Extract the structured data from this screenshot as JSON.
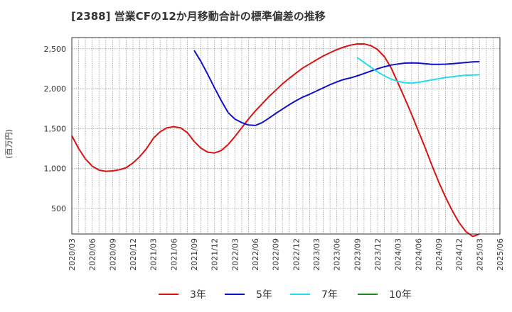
{
  "chart_data": {
    "type": "line",
    "title": "[2388]  営業CFの12か月移動合計の標準偏差の推移",
    "ylabel": "(百万円)",
    "xlabel": "",
    "ylim": [
      180,
      2640
    ],
    "yticks": [
      500,
      1000,
      1500,
      2000,
      2500
    ],
    "ytick_labels": [
      "500",
      "1,000",
      "1,500",
      "2,000",
      "2,500"
    ],
    "xticks": [
      "2020/03",
      "2020/06",
      "2020/09",
      "2020/12",
      "2021/03",
      "2021/06",
      "2021/09",
      "2021/12",
      "2022/03",
      "2022/06",
      "2022/09",
      "2022/12",
      "2023/03",
      "2023/06",
      "2023/09",
      "2023/12",
      "2024/03",
      "2024/06",
      "2024/09",
      "2024/12",
      "2025/03",
      "2025/06"
    ],
    "grid": true,
    "legend_position": "bottom",
    "series": [
      {
        "name": "3年",
        "color": "#dd1111",
        "x": [
          "2020/03",
          "2020/04",
          "2020/05",
          "2020/06",
          "2020/07",
          "2020/08",
          "2020/09",
          "2020/10",
          "2020/11",
          "2020/12",
          "2021/01",
          "2021/02",
          "2021/03",
          "2021/04",
          "2021/05",
          "2021/06",
          "2021/07",
          "2021/08",
          "2021/09",
          "2021/10",
          "2021/11",
          "2021/12",
          "2022/01",
          "2022/02",
          "2022/03",
          "2022/04",
          "2022/05",
          "2022/06",
          "2022/07",
          "2022/08",
          "2022/09",
          "2022/10",
          "2022/11",
          "2022/12",
          "2023/01",
          "2023/02",
          "2023/03",
          "2023/04",
          "2023/05",
          "2023/06",
          "2023/07",
          "2023/08",
          "2023/09",
          "2023/10",
          "2023/11",
          "2023/12",
          "2024/01",
          "2024/02",
          "2024/03",
          "2024/04",
          "2024/05",
          "2024/06",
          "2024/07",
          "2024/08",
          "2024/09",
          "2024/10",
          "2024/11",
          "2024/12",
          "2025/01",
          "2025/02",
          "2025/03"
        ],
        "values": [
          1410,
          1250,
          1120,
          1030,
          980,
          965,
          970,
          985,
          1010,
          1070,
          1150,
          1250,
          1380,
          1460,
          1510,
          1525,
          1510,
          1450,
          1340,
          1255,
          1205,
          1195,
          1225,
          1300,
          1400,
          1510,
          1620,
          1720,
          1810,
          1900,
          1980,
          2060,
          2130,
          2195,
          2260,
          2310,
          2360,
          2410,
          2450,
          2490,
          2520,
          2545,
          2560,
          2560,
          2540,
          2490,
          2400,
          2260,
          2070,
          1880,
          1680,
          1470,
          1260,
          1040,
          830,
          640,
          470,
          320,
          210,
          150,
          180
        ]
      },
      {
        "name": "5年",
        "color": "#1111cc",
        "x": [
          "2021/09",
          "2021/10",
          "2021/11",
          "2021/12",
          "2022/01",
          "2022/02",
          "2022/03",
          "2022/04",
          "2022/05",
          "2022/06",
          "2022/07",
          "2022/08",
          "2022/09",
          "2022/10",
          "2022/11",
          "2022/12",
          "2023/01",
          "2023/02",
          "2023/03",
          "2023/04",
          "2023/05",
          "2023/06",
          "2023/07",
          "2023/08",
          "2023/09",
          "2023/10",
          "2023/11",
          "2023/12",
          "2024/01",
          "2024/02",
          "2024/03",
          "2024/04",
          "2024/05",
          "2024/06",
          "2024/07",
          "2024/08",
          "2024/09",
          "2024/10",
          "2024/11",
          "2024/12",
          "2025/01",
          "2025/02",
          "2025/03"
        ],
        "values": [
          2480,
          2340,
          2180,
          2010,
          1850,
          1700,
          1620,
          1575,
          1545,
          1540,
          1575,
          1630,
          1690,
          1745,
          1800,
          1850,
          1895,
          1930,
          1970,
          2010,
          2050,
          2085,
          2115,
          2135,
          2160,
          2190,
          2220,
          2250,
          2275,
          2295,
          2310,
          2320,
          2322,
          2320,
          2312,
          2305,
          2305,
          2307,
          2312,
          2320,
          2328,
          2335,
          2338
        ]
      },
      {
        "name": "7年",
        "color": "#22ddee",
        "x": [
          "2023/09",
          "2023/10",
          "2023/11",
          "2023/12",
          "2024/01",
          "2024/02",
          "2024/03",
          "2024/04",
          "2024/05",
          "2024/06",
          "2024/07",
          "2024/08",
          "2024/09",
          "2024/10",
          "2024/11",
          "2024/12",
          "2025/01",
          "2025/02",
          "2025/03"
        ],
        "values": [
          2390,
          2330,
          2270,
          2210,
          2160,
          2120,
          2090,
          2075,
          2070,
          2080,
          2095,
          2110,
          2125,
          2140,
          2150,
          2160,
          2168,
          2172,
          2175
        ]
      },
      {
        "name": "10年",
        "color": "#228822",
        "x": [],
        "values": []
      }
    ]
  }
}
